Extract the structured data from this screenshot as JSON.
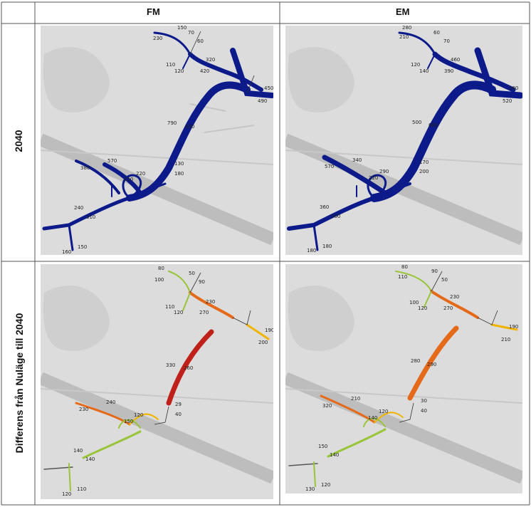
{
  "columns": [
    "FM",
    "EM"
  ],
  "rows": [
    "2040",
    "Differens från Nuläge till 2040"
  ],
  "colors": {
    "volume": "#0c1a8a",
    "diff_low": "#9ac43a",
    "diff_mid": "#f0b400",
    "diff_high": "#e46a1a",
    "diff_max": "#c0201a",
    "background": "#dcdcdc"
  },
  "maps": {
    "fm_2040": {
      "labels": [
        "150",
        "230",
        "70",
        "60",
        "320",
        "420",
        "110",
        "120",
        "450",
        "490",
        "790",
        "430",
        "570",
        "380",
        "220",
        "410",
        "130",
        "180",
        "240",
        "310",
        "160",
        "150"
      ]
    },
    "em_2040": {
      "labels": [
        "280",
        "210",
        "60",
        "70",
        "460",
        "390",
        "120",
        "140",
        "580",
        "520",
        "500",
        "660",
        "340",
        "570",
        "290",
        "320",
        "170",
        "200",
        "360",
        "300",
        "180",
        "180"
      ]
    },
    "fm_diff": {
      "labels": [
        "80",
        "100",
        "50",
        "90",
        "230",
        "270",
        "110",
        "120",
        "190",
        "200",
        "330",
        "260",
        "240",
        "230",
        "120",
        "150",
        "29",
        "40",
        "140",
        "140",
        "120",
        "110"
      ]
    },
    "em_diff": {
      "labels": [
        "80",
        "110",
        "90",
        "50",
        "230",
        "270",
        "100",
        "120",
        "190",
        "210",
        "280",
        "290",
        "210",
        "320",
        "120",
        "140",
        "30",
        "40",
        "150",
        "140",
        "130",
        "120"
      ]
    }
  }
}
